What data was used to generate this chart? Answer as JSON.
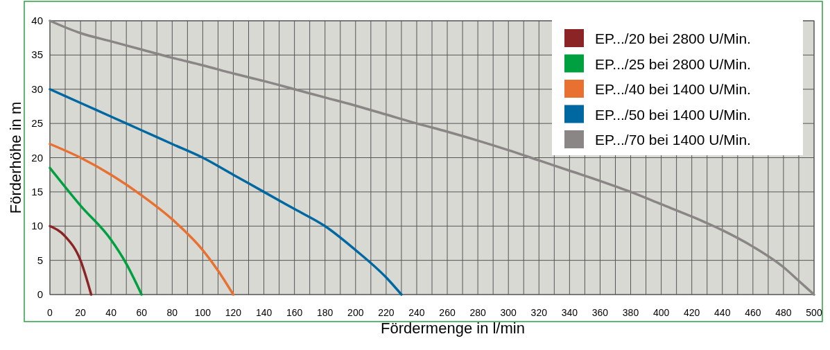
{
  "chart_data": {
    "type": "line",
    "xlabel": "Fördermenge in l/min",
    "ylabel": "Förderhöhe in m",
    "xlim": [
      0,
      500
    ],
    "ylim": [
      0,
      40
    ],
    "xticks": [
      0,
      {
        "value": 10,
        "label": null
      },
      20,
      {
        "value": 30,
        "label": null
      },
      40,
      {
        "value": 50,
        "label": null
      },
      60,
      {
        "value": 70,
        "label": null
      },
      80,
      {
        "value": 90,
        "label": null
      },
      100,
      {
        "value": 110,
        "label": null
      },
      120,
      {
        "value": 130,
        "label": null
      },
      140,
      {
        "value": 150,
        "label": null
      },
      160,
      {
        "value": 170,
        "label": null
      },
      180,
      {
        "value": 190,
        "label": null
      },
      200,
      {
        "value": 210,
        "label": null
      },
      220,
      {
        "value": 230,
        "label": null
      },
      240,
      {
        "value": 250,
        "label": null
      },
      260,
      {
        "value": 270,
        "label": null
      },
      280,
      {
        "value": 290,
        "label": null
      },
      300,
      {
        "value": 310,
        "label": null
      },
      320,
      {
        "value": 330,
        "label": null
      },
      340,
      {
        "value": 350,
        "label": null
      },
      360,
      {
        "value": 370,
        "label": null
      },
      380,
      {
        "value": 390,
        "label": null
      },
      400,
      {
        "value": 410,
        "label": null
      },
      420,
      {
        "value": 430,
        "label": null
      },
      440,
      {
        "value": 450,
        "label": null
      },
      460,
      {
        "value": 470,
        "label": null
      },
      480,
      {
        "value": 490,
        "label": null
      },
      500
    ],
    "yticks": [
      0,
      5,
      10,
      15,
      20,
      25,
      30,
      35,
      40
    ],
    "grid": true,
    "legend": "top right",
    "marker": "none",
    "line_style": "solid",
    "series": [
      {
        "name": "EP.../20 bei 2800 U/Min.",
        "color": "#8b2525",
        "x": [
          0,
          10,
          20,
          27
        ],
        "values": [
          10,
          8.5,
          5,
          0
        ]
      },
      {
        "name": "EP.../25 bei 2800 U/Min.",
        "color": "#00a040",
        "x": [
          0,
          20,
          40,
          50,
          60
        ],
        "values": [
          18.5,
          13,
          8,
          4.5,
          0
        ]
      },
      {
        "name": "EP.../40 bei 1400 U/Min.",
        "color": "#e87030",
        "x": [
          0,
          20,
          40,
          60,
          80,
          100,
          110,
          120
        ],
        "values": [
          22,
          20,
          17.5,
          14.5,
          11,
          6.5,
          3.5,
          0
        ]
      },
      {
        "name": "EP.../50 bei 1400 U/Min.",
        "color": "#0068a0",
        "x": [
          0,
          20,
          40,
          60,
          80,
          100,
          120,
          140,
          160,
          180,
          200,
          220,
          230
        ],
        "values": [
          30,
          28,
          26,
          24,
          22,
          20,
          17.5,
          15,
          12.5,
          10,
          6.5,
          2.5,
          0
        ]
      },
      {
        "name": "EP.../70 bei 1400 U/Min.",
        "color": "#8a8686",
        "x": [
          0,
          20,
          40,
          60,
          80,
          100,
          120,
          140,
          160,
          180,
          200,
          220,
          240,
          260,
          280,
          300,
          320,
          340,
          360,
          380,
          400,
          420,
          440,
          460,
          480,
          490,
          500
        ],
        "values": [
          40,
          38.2,
          37,
          35.8,
          34.6,
          33.5,
          32.3,
          31.2,
          30,
          28.8,
          27.6,
          26.3,
          25,
          23.8,
          22.5,
          21.1,
          19.6,
          18.1,
          16.6,
          15,
          13.2,
          11.4,
          9.4,
          7,
          4,
          2,
          0
        ]
      }
    ]
  }
}
